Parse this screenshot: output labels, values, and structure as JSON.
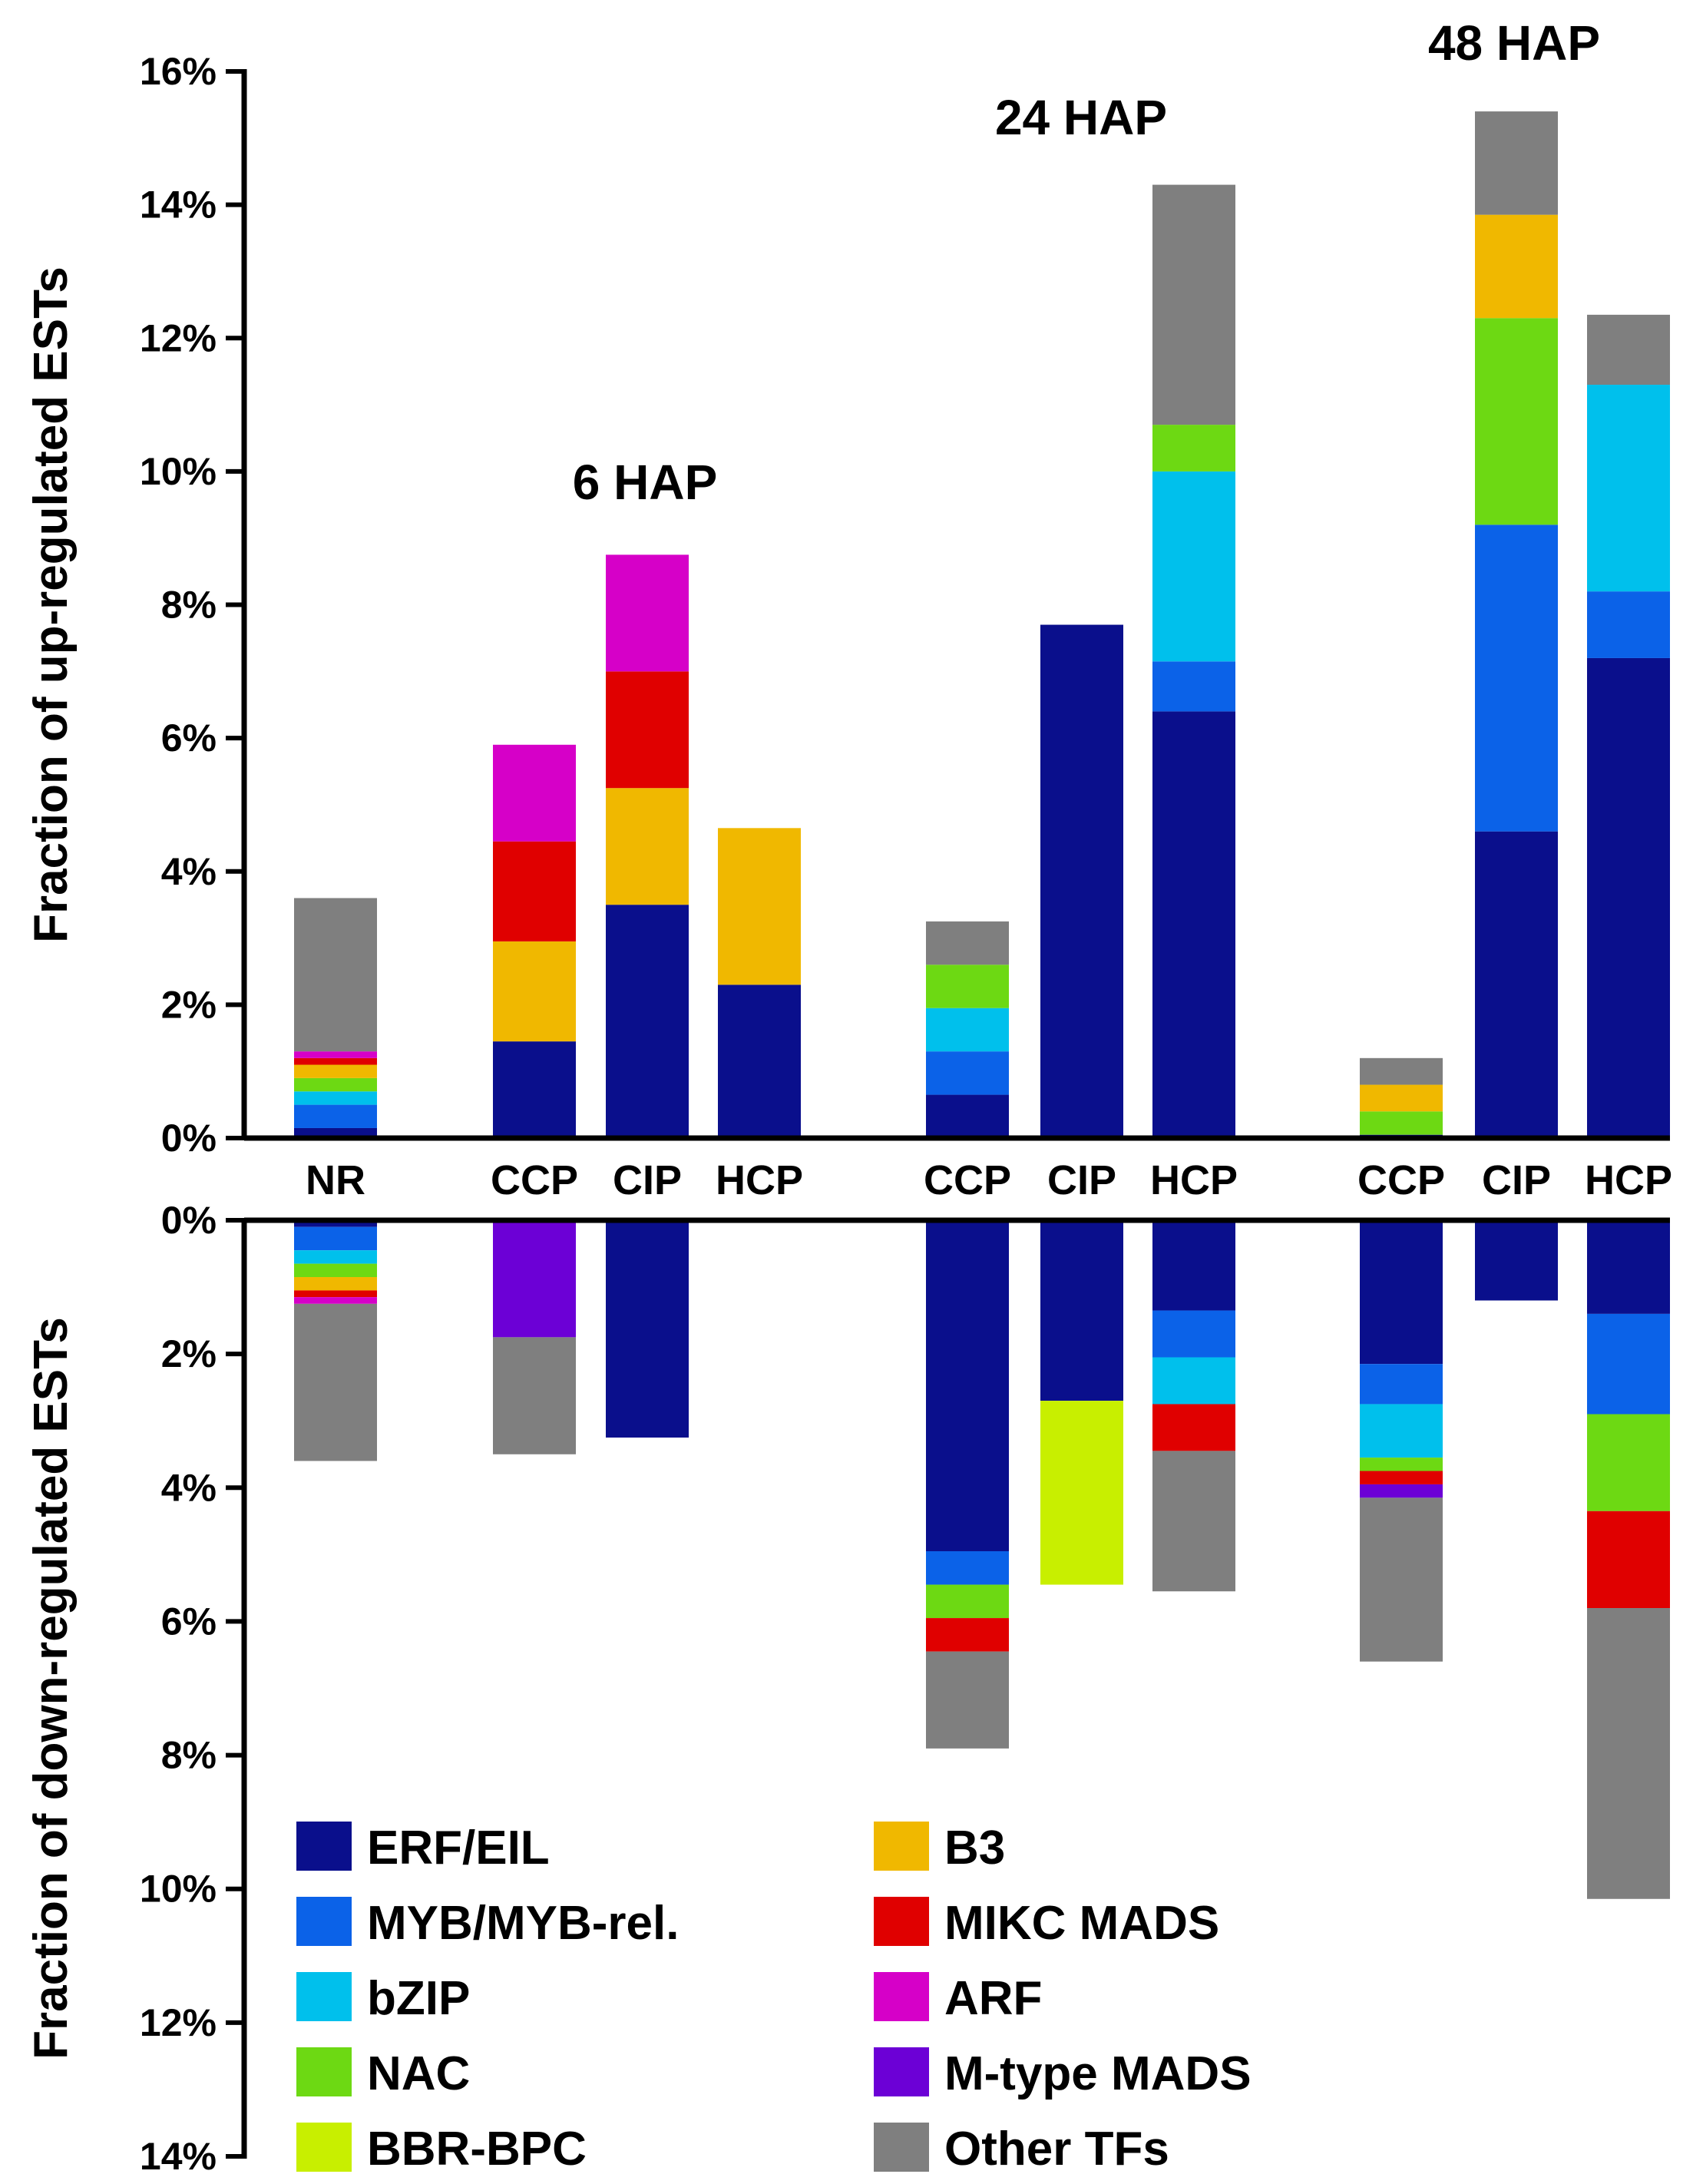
{
  "chart_data": {
    "type": "bar",
    "stacked": true,
    "layout": "mirrored",
    "categories": [
      "NR",
      "CCP",
      "CIP",
      "HCP",
      "CCP",
      "CIP",
      "HCP",
      "CCP",
      "CIP",
      "HCP"
    ],
    "groups": [
      {
        "label": "6 HAP",
        "categories": [
          1,
          2,
          3
        ]
      },
      {
        "label": "24 HAP",
        "categories": [
          4,
          5,
          6
        ]
      },
      {
        "label": "48 HAP",
        "categories": [
          7,
          8,
          9
        ]
      }
    ],
    "y_up_label": "Fraction of up-regulated ESTs",
    "y_down_label": "Fraction of down-regulated ESTs",
    "y_up_ticks": [
      "0%",
      "2%",
      "4%",
      "6%",
      "8%",
      "10%",
      "12%",
      "14%",
      "16%"
    ],
    "y_down_ticks": [
      "0%",
      "2%",
      "4%",
      "6%",
      "8%",
      "10%",
      "12%",
      "14%"
    ],
    "y_up_range": [
      0,
      16
    ],
    "y_down_range": [
      0,
      14
    ],
    "series": [
      {
        "name": "ERF/EIL",
        "color": "#0a0f8c",
        "up": [
          0.15,
          1.45,
          3.5,
          2.3,
          0.65,
          7.7,
          6.4,
          0.05,
          4.6,
          7.2
        ],
        "down": [
          0.1,
          0,
          3.25,
          0,
          4.95,
          2.7,
          1.35,
          2.15,
          1.2,
          1.4
        ]
      },
      {
        "name": "MYB/MYB-rel.",
        "color": "#0b62e8",
        "up": [
          0.35,
          0,
          0,
          0,
          0.65,
          0,
          0.75,
          0,
          4.6,
          1.0
        ],
        "down": [
          0.35,
          0,
          0,
          0,
          0.5,
          0,
          0.7,
          0.6,
          0,
          1.5
        ]
      },
      {
        "name": "bZIP",
        "color": "#00c0ec",
        "up": [
          0.2,
          0,
          0,
          0,
          0.65,
          0,
          2.85,
          0,
          0,
          3.1
        ],
        "down": [
          0.2,
          0,
          0,
          0,
          0,
          0,
          0.7,
          0.8,
          0,
          0
        ]
      },
      {
        "name": "NAC",
        "color": "#6dd913",
        "up": [
          0.2,
          0,
          0,
          0,
          0.65,
          0,
          0.7,
          0.35,
          3.1,
          0
        ],
        "down": [
          0.2,
          0,
          0,
          0,
          0.5,
          0,
          0,
          0.2,
          0,
          1.45
        ]
      },
      {
        "name": "BBR-BPC",
        "color": "#c8ef00",
        "up": [
          0,
          0,
          0,
          0,
          0,
          0,
          0,
          0,
          0,
          0
        ],
        "down": [
          0,
          0,
          0,
          0,
          0,
          2.75,
          0,
          0,
          0,
          0
        ]
      },
      {
        "name": "B3",
        "color": "#f0b800",
        "up": [
          0.2,
          1.5,
          1.75,
          2.35,
          0,
          0,
          0,
          0.4,
          1.55,
          0
        ],
        "down": [
          0.2,
          0,
          0,
          0,
          0,
          0,
          0,
          0,
          0,
          0
        ]
      },
      {
        "name": "MIKC MADS",
        "color": "#e00000",
        "up": [
          0.1,
          1.5,
          1.75,
          0,
          0,
          0,
          0,
          0,
          0,
          0
        ],
        "down": [
          0.1,
          0,
          0,
          0,
          0.5,
          0,
          0.7,
          0.2,
          0,
          1.45
        ]
      },
      {
        "name": "ARF",
        "color": "#d600c8",
        "up": [
          0.1,
          1.45,
          1.75,
          0,
          0,
          0,
          0,
          0,
          0,
          0
        ],
        "down": [
          0.1,
          0,
          0,
          0,
          0,
          0,
          0,
          0,
          0,
          0
        ]
      },
      {
        "name": "M-type MADS",
        "color": "#6c00d6",
        "up": [
          0,
          0,
          0,
          0,
          0,
          0,
          0,
          0,
          0,
          0
        ],
        "down": [
          0,
          1.75,
          0,
          0,
          0,
          0,
          0,
          0.2,
          0,
          0
        ]
      },
      {
        "name": "Other TFs",
        "color": "#7f7f7f",
        "up": [
          2.3,
          0,
          0,
          0,
          0.65,
          0,
          3.6,
          0.4,
          1.55,
          1.05
        ],
        "down": [
          2.35,
          1.75,
          0,
          0,
          1.45,
          0,
          2.1,
          2.45,
          0,
          4.35
        ]
      }
    ],
    "legend": {
      "placement": "bottom-left",
      "columns": [
        [
          "ERF/EIL",
          "MYB/MYB-rel.",
          "bZIP",
          "NAC",
          "BBR-BPC"
        ],
        [
          "B3",
          "MIKC MADS",
          "ARF",
          "M-type MADS",
          "Other TFs"
        ]
      ]
    }
  }
}
